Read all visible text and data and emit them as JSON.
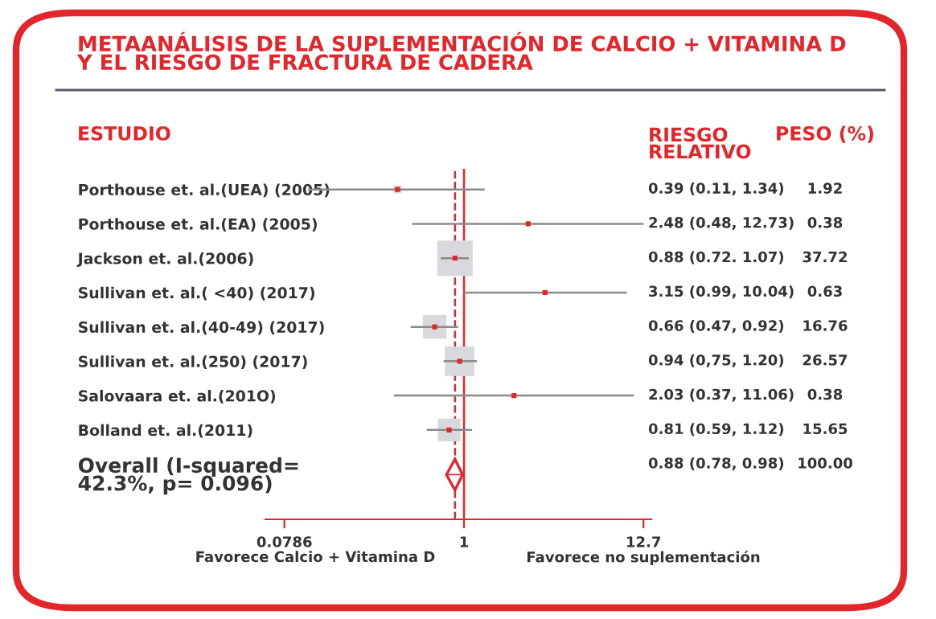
{
  "chart_data": {
    "type": "bubble",
    "orientation": "horizontal",
    "title": "METAANÁLISIS DE LA SUPLEMENTACIÓN DE CALCIO + VITAMINA D\nY EL RIESGO DE FRACTURA DE CADERA",
    "ylabel": "ESTUDIO",
    "categories": [
      "Porthouse et. al.(UEA) (2005)",
      "Porthouse et. al.(EA) (2005)",
      "Jackson et. al.(2006)",
      "Sullivan et. al.( <40) (2017)",
      "Sullivan et. al.(40-49) (2017)",
      "Sullivan et. al.(250) (2017)",
      "Salovaara et. al.(201O)",
      "Bolland et. al.(2011)",
      "Overall (I-squared=\n42.3%, p= 0.096)"
    ],
    "series": [
      {
        "marker": "square",
        "color": "#d9d9dd",
        "values": [
          0.39,
          2.48,
          0.88,
          3.15,
          0.66,
          0.94,
          2.03,
          0.81,
          null
        ],
        "errors": [
          [
            0.11,
            1.34
          ],
          [
            0.48,
            12.73
          ],
          [
            0.72,
            1.07
          ],
          [
            0.99,
            10.04
          ],
          [
            0.47,
            0.92
          ],
          [
            0.75,
            1.2
          ],
          [
            0.37,
            11.06
          ],
          [
            0.59,
            1.12
          ],
          null
        ],
        "sizes": [
          0.051,
          0.01,
          1,
          0.017,
          0.444,
          0.704,
          0.01,
          0.415,
          null
        ]
      },
      {
        "marker": "diamond",
        "color": "#e3262b",
        "values": [
          null,
          null,
          null,
          null,
          null,
          null,
          null,
          null,
          0.88
        ],
        "errors": [
          null,
          null,
          null,
          null,
          null,
          null,
          null,
          null,
          [
            0.78,
            0.98
          ]
        ]
      }
    ],
    "log": "x",
    "xlim": [
      0.06,
      14.2
    ],
    "xticks": [
      0.0786,
      1,
      12.7
    ],
    "ref_lines": [
      {
        "axis": "x",
        "value": 1,
        "color": "#e3262b",
        "line_style": "solid"
      },
      {
        "axis": "x",
        "value": 0.88,
        "color": "#e3262b",
        "line_style": "dashed"
      }
    ],
    "annotations": [
      "RIESGO\nRELATIVO",
      "PESO (%)",
      "Favorece Calcio + Vitamina D",
      "Favorece no suplementación",
      "0.39 (0.11, 1.34)",
      "2.48 (0.48, 12.73)",
      "0.88 (0.72. 1.07)",
      "3.15 (0.99, 10.04)",
      "0.66 (0.47, 0.92)",
      "0.94 (0,75, 1.20)",
      "2.03 (0.37, 11.06)",
      "0.81 (0.59, 1.12)",
      "0.88 (0.78, 0.98)",
      "1.92",
      "0.38",
      "37.72",
      "0.63",
      "16.76",
      "26.57",
      "0.38",
      "15.65",
      "100.00"
    ],
    "grid": false
  }
}
